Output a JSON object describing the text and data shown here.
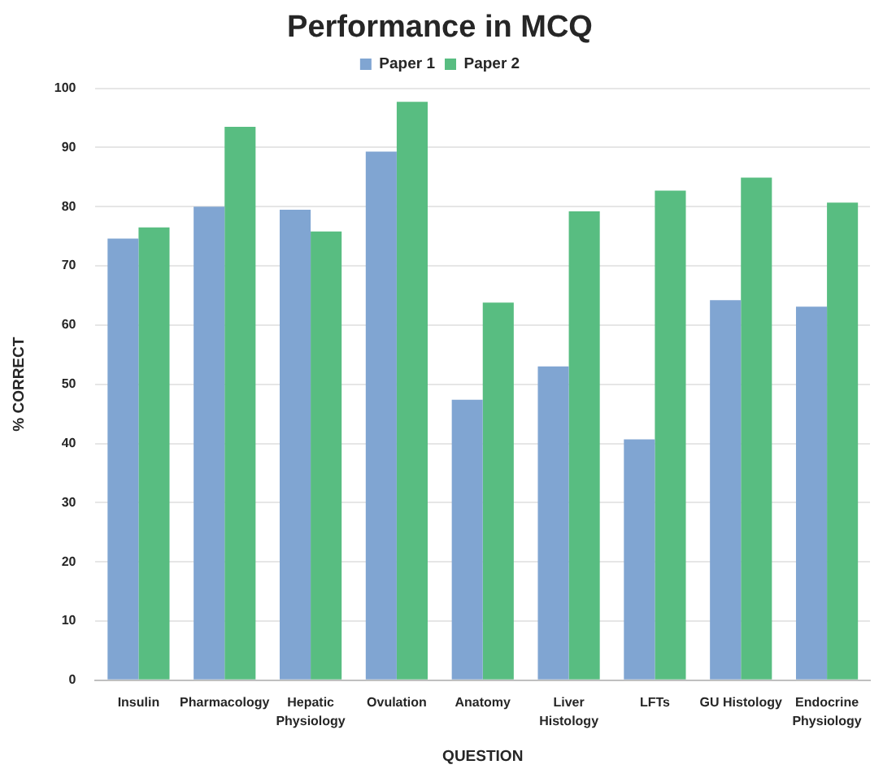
{
  "chart_data": {
    "type": "bar",
    "title": "Performance in MCQ",
    "xlabel": "QUESTION",
    "ylabel": "% CORRECT",
    "categories": [
      "Insulin",
      "Pharmacology",
      "Hepatic Physiology",
      "Ovulation",
      "Anatomy",
      "Liver Histology",
      "LFTs",
      "GU Histology",
      "Endocrine Physiology"
    ],
    "series": [
      {
        "name": "Paper 1",
        "color": "#80a5d2",
        "values": [
          74.6,
          80,
          79.5,
          89.3,
          47.4,
          53,
          40.7,
          64.2,
          63.1
        ]
      },
      {
        "name": "Paper 2",
        "color": "#58bd81",
        "values": [
          76.5,
          93.5,
          75.8,
          97.7,
          63.8,
          79.2,
          82.7,
          84.9,
          80.7
        ]
      }
    ],
    "ylim": [
      0,
      100
    ],
    "yticks": [
      0,
      10,
      20,
      30,
      40,
      50,
      60,
      70,
      80,
      90,
      100
    ],
    "grid": "y",
    "legend": "top"
  }
}
